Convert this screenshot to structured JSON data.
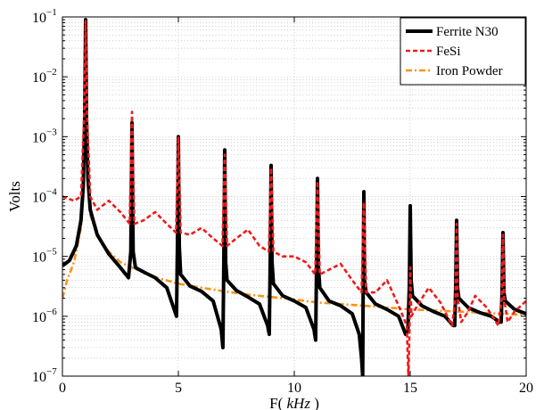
{
  "chart_data": {
    "type": "line",
    "title": "",
    "xlabel": "F( kHz )",
    "xlabel_parts": {
      "prefix": "F( ",
      "unit": "kHz",
      "suffix": " )"
    },
    "ylabel": "Volts",
    "xlim": [
      0,
      20
    ],
    "ylim": [
      1e-07,
      0.1
    ],
    "yscale": "log",
    "grid": true,
    "legend_position": "top-right",
    "x_ticks": [
      0,
      5,
      10,
      15,
      20
    ],
    "x_tick_labels": [
      "0",
      "5",
      "10",
      "15",
      "20"
    ],
    "y_ticks": [
      1e-07,
      1e-06,
      1e-05,
      0.0001,
      0.001,
      0.01,
      0.1
    ],
    "y_tick_labels": [
      {
        "base": "10",
        "exp": "−7"
      },
      {
        "base": "10",
        "exp": "−6"
      },
      {
        "base": "10",
        "exp": "−5"
      },
      {
        "base": "10",
        "exp": "−4"
      },
      {
        "base": "10",
        "exp": "−3"
      },
      {
        "base": "10",
        "exp": "−2"
      },
      {
        "base": "10",
        "exp": "−1"
      }
    ],
    "series": [
      {
        "name": "Ferrite N30",
        "color": "#000000",
        "style": "solid",
        "points": [
          [
            0,
            7e-06
          ],
          [
            0.3,
            8.5e-06
          ],
          [
            0.6,
            1.5e-05
          ],
          [
            0.8,
            4e-05
          ],
          [
            0.9,
            0.00015
          ],
          [
            0.96,
            0.002
          ],
          [
            1.0,
            0.09
          ],
          [
            1.04,
            0.002
          ],
          [
            1.1,
            0.0002
          ],
          [
            1.2,
            6e-05
          ],
          [
            1.5,
            2.3e-05
          ],
          [
            2.0,
            1.1e-05
          ],
          [
            2.5,
            6.5e-06
          ],
          [
            2.85,
            4.4e-06
          ],
          [
            2.95,
            1.2e-05
          ],
          [
            3.0,
            0.0017
          ],
          [
            3.05,
            1.2e-05
          ],
          [
            3.15,
            6.5e-06
          ],
          [
            3.5,
            5.5e-06
          ],
          [
            4.0,
            4.4e-06
          ],
          [
            4.5,
            3e-06
          ],
          [
            4.85,
            1.2e-06
          ],
          [
            4.92,
            1e-06
          ],
          [
            4.96,
            1.5e-05
          ],
          [
            5.0,
            0.001
          ],
          [
            5.04,
            1.5e-05
          ],
          [
            5.1,
            5e-06
          ],
          [
            5.5,
            3.2e-06
          ],
          [
            6.0,
            2.6e-06
          ],
          [
            6.5,
            1.8e-06
          ],
          [
            6.85,
            6e-07
          ],
          [
            6.92,
            3e-07
          ],
          [
            6.96,
            8e-06
          ],
          [
            7.0,
            0.0006
          ],
          [
            7.04,
            8e-06
          ],
          [
            7.1,
            4e-06
          ],
          [
            7.5,
            2.7e-06
          ],
          [
            8.0,
            2.1e-06
          ],
          [
            8.5,
            1.6e-06
          ],
          [
            8.85,
            7e-07
          ],
          [
            8.92,
            5e-07
          ],
          [
            8.96,
            8e-06
          ],
          [
            9.0,
            0.00033
          ],
          [
            9.04,
            8e-06
          ],
          [
            9.1,
            3.5e-06
          ],
          [
            9.5,
            2.2e-06
          ],
          [
            10.0,
            1.8e-06
          ],
          [
            10.5,
            1.4e-06
          ],
          [
            10.85,
            6e-07
          ],
          [
            10.92,
            4e-07
          ],
          [
            10.96,
            7e-06
          ],
          [
            11.0,
            0.0002
          ],
          [
            11.04,
            7e-06
          ],
          [
            11.1,
            3e-06
          ],
          [
            11.5,
            1.8e-06
          ],
          [
            12.0,
            1.5e-06
          ],
          [
            12.5,
            1.1e-06
          ],
          [
            12.8,
            5e-07
          ],
          [
            12.9,
            2e-07
          ],
          [
            12.95,
            1e-07
          ],
          [
            12.97,
            3e-06
          ],
          [
            13.0,
            0.00012
          ],
          [
            13.03,
            4e-06
          ],
          [
            13.1,
            2.5e-06
          ],
          [
            13.5,
            1.6e-06
          ],
          [
            14.0,
            1.3e-06
          ],
          [
            14.5,
            1e-06
          ],
          [
            14.8,
            5e-07
          ],
          [
            14.9,
            6e-07
          ],
          [
            14.96,
            3e-06
          ],
          [
            15.0,
            7e-05
          ],
          [
            15.04,
            4e-06
          ],
          [
            15.1,
            2.2e-06
          ],
          [
            15.5,
            1.5e-06
          ],
          [
            16.0,
            1.2e-06
          ],
          [
            16.5,
            1e-06
          ],
          [
            16.85,
            7e-07
          ],
          [
            16.92,
            7e-07
          ],
          [
            16.96,
            3e-06
          ],
          [
            17.0,
            4e-05
          ],
          [
            17.04,
            3e-06
          ],
          [
            17.1,
            2e-06
          ],
          [
            17.5,
            1.4e-06
          ],
          [
            18.0,
            1.15e-06
          ],
          [
            18.5,
            1e-06
          ],
          [
            18.85,
            8e-07
          ],
          [
            18.92,
            8e-07
          ],
          [
            18.96,
            2.5e-06
          ],
          [
            19.0,
            2.5e-05
          ],
          [
            19.04,
            2.5e-06
          ],
          [
            19.1,
            1.8e-06
          ],
          [
            19.5,
            1.3e-06
          ],
          [
            20.0,
            1.1e-06
          ]
        ]
      },
      {
        "name": "FeSi",
        "color": "#ee1c1c",
        "style": "dashed",
        "points": [
          [
            0,
            0.0001
          ],
          [
            0.5,
            8.5e-05
          ],
          [
            0.8,
            0.0001
          ],
          [
            0.95,
            0.003
          ],
          [
            1.0,
            0.085
          ],
          [
            1.05,
            0.003
          ],
          [
            1.2,
            0.0001
          ],
          [
            1.5,
            6e-05
          ],
          [
            2.0,
            8.5e-05
          ],
          [
            2.5,
            5.5e-05
          ],
          [
            2.9,
            3.5e-05
          ],
          [
            3.0,
            0.0026
          ],
          [
            3.1,
            3.5e-05
          ],
          [
            3.5,
            4e-05
          ],
          [
            4.0,
            5.5e-05
          ],
          [
            4.5,
            3.5e-05
          ],
          [
            4.9,
            2.5e-05
          ],
          [
            5.0,
            0.001
          ],
          [
            5.1,
            2.5e-05
          ],
          [
            5.5,
            2.3e-05
          ],
          [
            6.0,
            3e-05
          ],
          [
            6.5,
            2e-05
          ],
          [
            6.9,
            1.5e-05
          ],
          [
            7.0,
            0.0005
          ],
          [
            7.1,
            1.5e-05
          ],
          [
            7.5,
            2e-05
          ],
          [
            8.0,
            2.8e-05
          ],
          [
            8.5,
            1.5e-05
          ],
          [
            8.9,
            1.2e-05
          ],
          [
            9.0,
            0.0003
          ],
          [
            9.1,
            1.2e-05
          ],
          [
            9.5,
            1e-05
          ],
          [
            10.0,
            1e-05
          ],
          [
            10.5,
            8e-06
          ],
          [
            10.9,
            5e-06
          ],
          [
            11.0,
            0.00018
          ],
          [
            11.1,
            5e-06
          ],
          [
            11.5,
            6e-06
          ],
          [
            12.0,
            7.5e-06
          ],
          [
            12.5,
            4e-06
          ],
          [
            12.9,
            2.5e-06
          ],
          [
            13.0,
            8e-05
          ],
          [
            13.1,
            2.5e-06
          ],
          [
            13.5,
            2.5e-06
          ],
          [
            14.0,
            4e-06
          ],
          [
            14.5,
            1.5e-06
          ],
          [
            14.85,
            7e-07
          ],
          [
            14.92,
            1e-07
          ],
          [
            14.97,
            6e-07
          ],
          [
            15.0,
            6.5e-06
          ],
          [
            15.05,
            1e-06
          ],
          [
            15.3,
            1.5e-06
          ],
          [
            15.8,
            3e-06
          ],
          [
            16.3,
            1.7e-06
          ],
          [
            16.8,
            7e-07
          ],
          [
            16.95,
            2e-06
          ],
          [
            17.0,
            3.5e-05
          ],
          [
            17.05,
            2e-06
          ],
          [
            17.2,
            8e-07
          ],
          [
            17.5,
            1.2e-06
          ],
          [
            17.8,
            2.2e-06
          ],
          [
            18.3,
            1.4e-06
          ],
          [
            18.8,
            7e-07
          ],
          [
            18.95,
            2e-06
          ],
          [
            19.0,
            2.3e-05
          ],
          [
            19.05,
            2e-06
          ],
          [
            19.2,
            8e-07
          ],
          [
            19.5,
            1.2e-06
          ],
          [
            20.0,
            1.8e-06
          ]
        ]
      },
      {
        "name": "Iron Powder",
        "color": "#f7941d",
        "style": "dashdot",
        "points": [
          [
            0,
            2e-06
          ],
          [
            0.2,
            4e-06
          ],
          [
            0.5,
            8e-06
          ],
          [
            0.8,
            3e-05
          ],
          [
            0.9,
            0.00012
          ],
          [
            0.96,
            0.002
          ],
          [
            1.0,
            0.06
          ],
          [
            1.04,
            0.002
          ],
          [
            1.1,
            0.00015
          ],
          [
            1.2,
            5e-05
          ],
          [
            1.5,
            2.2e-05
          ],
          [
            2.0,
            1.2e-05
          ],
          [
            2.5,
            8e-06
          ],
          [
            3.0,
            6.5e-06
          ],
          [
            4.0,
            4.5e-06
          ],
          [
            5.0,
            3.5e-06
          ],
          [
            6.0,
            3e-06
          ],
          [
            7.0,
            2.6e-06
          ],
          [
            8.0,
            2.3e-06
          ],
          [
            9.0,
            2.1e-06
          ],
          [
            10.0,
            1.9e-06
          ],
          [
            11.0,
            1.7e-06
          ],
          [
            12.0,
            1.6e-06
          ],
          [
            13.0,
            1.5e-06
          ],
          [
            14.0,
            1.4e-06
          ],
          [
            15.0,
            1.3e-06
          ],
          [
            16.0,
            1.25e-06
          ],
          [
            17.0,
            1.2e-06
          ],
          [
            18.0,
            1.15e-06
          ],
          [
            19.0,
            1.1e-06
          ],
          [
            20.0,
            1.05e-06
          ]
        ]
      }
    ]
  }
}
